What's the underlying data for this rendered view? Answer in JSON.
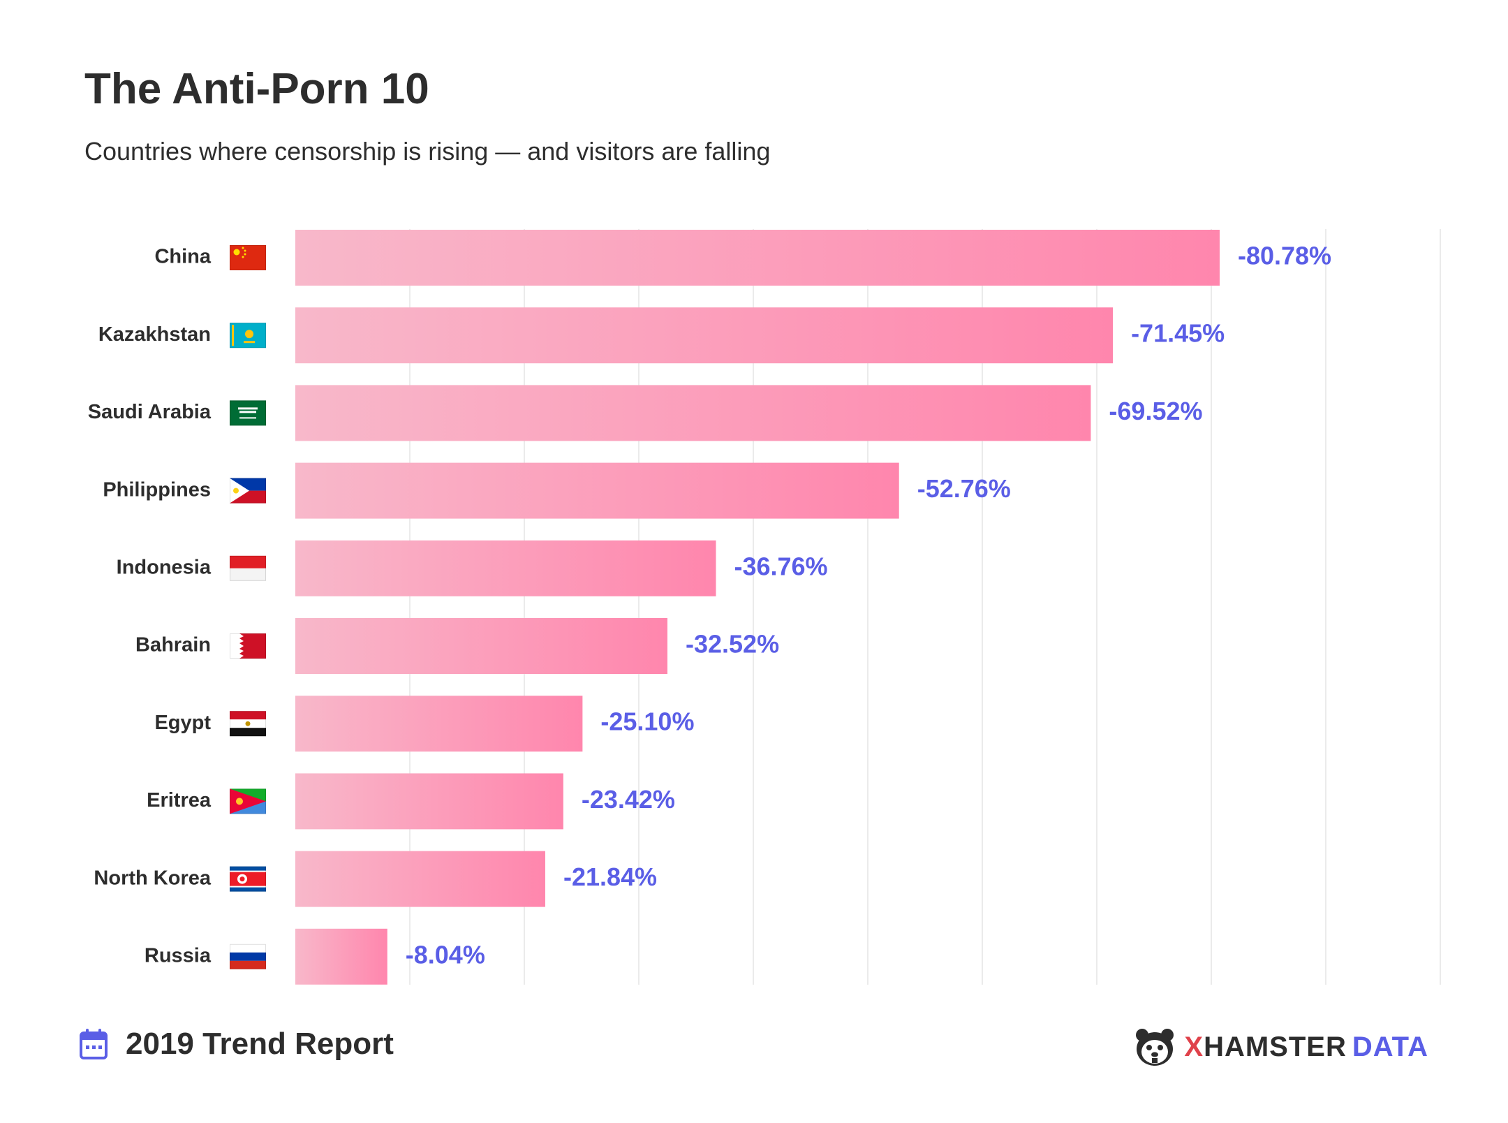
{
  "header": {
    "title": "The Anti-Porn 10",
    "subtitle": "Countries where censorship is rising — and visitors are falling"
  },
  "footer": {
    "report_label": "2019 Trend Report",
    "calendar_icon": "calendar-icon",
    "brand_icon": "hamster-logo-icon",
    "brand_x": "X",
    "brand_hamster": "HAMSTER",
    "brand_data": "DATA"
  },
  "colors": {
    "bar_start": "#f8b8ca",
    "bar_end": "#ff86ad",
    "value_label": "#5a5ee6",
    "grid": "#ebebeb"
  },
  "chart_data": {
    "type": "bar",
    "orientation": "horizontal",
    "title": "The Anti-Porn 10",
    "subtitle": "Countries where censorship is rising — and visitors are falling",
    "xlabel": "",
    "ylabel": "",
    "xlim": [
      0,
      100
    ],
    "grid": true,
    "categories": [
      "China",
      "Kazakhstan",
      "Saudi Arabia",
      "Philippines",
      "Indonesia",
      "Bahrain",
      "Egypt",
      "Eritrea",
      "North Korea",
      "Russia"
    ],
    "flag_icons": [
      "china-flag-icon",
      "kazakhstan-flag-icon",
      "saudi-arabia-flag-icon",
      "philippines-flag-icon",
      "indonesia-flag-icon",
      "bahrain-flag-icon",
      "egypt-flag-icon",
      "eritrea-flag-icon",
      "north-korea-flag-icon",
      "russia-flag-icon"
    ],
    "values": [
      -80.78,
      -71.45,
      -69.52,
      -52.76,
      -36.76,
      -32.52,
      -25.1,
      -23.42,
      -21.84,
      -8.04
    ],
    "value_labels": [
      "-80.78%",
      "-71.45%",
      "-69.52%",
      "-52.76%",
      "-36.76%",
      "-32.52%",
      "-25.10%",
      "-23.42%",
      "-21.84%",
      "-8.04%"
    ]
  }
}
